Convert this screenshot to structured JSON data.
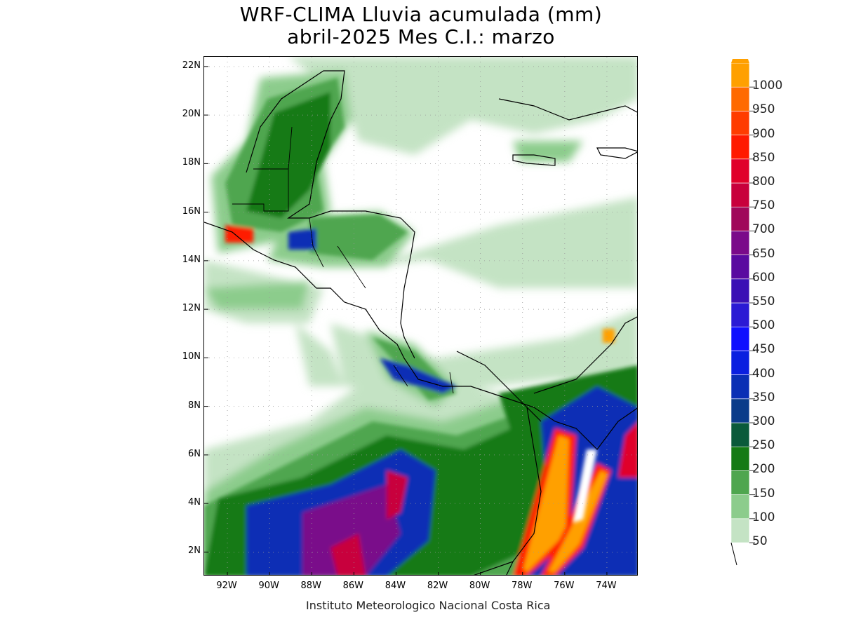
{
  "title_line1": "WRF-CLIMA Lluvia acumulada (mm)",
  "title_line2": "abril-2025 Mes C.I.: marzo",
  "credit": "Instituto Meteorologico Nacional Costa Rica",
  "y_ticks": [
    "22N",
    "20N",
    "18N",
    "16N",
    "14N",
    "12N",
    "10N",
    "8N",
    "6N",
    "4N",
    "2N"
  ],
  "x_ticks": [
    "92W",
    "90W",
    "88W",
    "86W",
    "84W",
    "82W",
    "80W",
    "78W",
    "76W",
    "74W"
  ],
  "legend": {
    "levels": [
      "50",
      "100",
      "150",
      "200",
      "250",
      "300",
      "350",
      "400",
      "450",
      "500",
      "550",
      "600",
      "650",
      "700",
      "750",
      "800",
      "850",
      "900",
      "950",
      "1000"
    ],
    "colors": [
      "#c4e3c4",
      "#8ccc8c",
      "#4fa64f",
      "#147a14",
      "#0a5a3a",
      "#0a3c8a",
      "#0a2fb5",
      "#0a1fe0",
      "#1010ff",
      "#2b1ad4",
      "#3a10b5",
      "#5a0aa0",
      "#7a0a8a",
      "#a0085a",
      "#c8003c",
      "#e0002a",
      "#ff1a00",
      "#ff3c00",
      "#ff6a00",
      "#ffa000"
    ]
  },
  "chart_data": {
    "type": "heatmap",
    "title": "WRF-CLIMA Lluvia acumulada (mm) abril-2025 Mes C.I.: marzo",
    "variable": "Lluvia acumulada",
    "units": "mm",
    "x_axis_ticks": [
      "92W",
      "90W",
      "88W",
      "86W",
      "84W",
      "82W",
      "80W",
      "78W",
      "76W",
      "74W"
    ],
    "y_axis_ticks": [
      "2N",
      "4N",
      "6N",
      "8N",
      "10N",
      "12N",
      "14N",
      "16N",
      "18N",
      "20N",
      "22N"
    ],
    "xlim_lon": [
      -93.1,
      -72.5
    ],
    "ylim_lat": [
      1.0,
      22.4
    ],
    "color_levels": [
      50,
      100,
      150,
      200,
      250,
      300,
      350,
      400,
      450,
      500,
      550,
      600,
      650,
      700,
      750,
      800,
      850,
      900,
      950,
      1000
    ],
    "grid": true
  }
}
